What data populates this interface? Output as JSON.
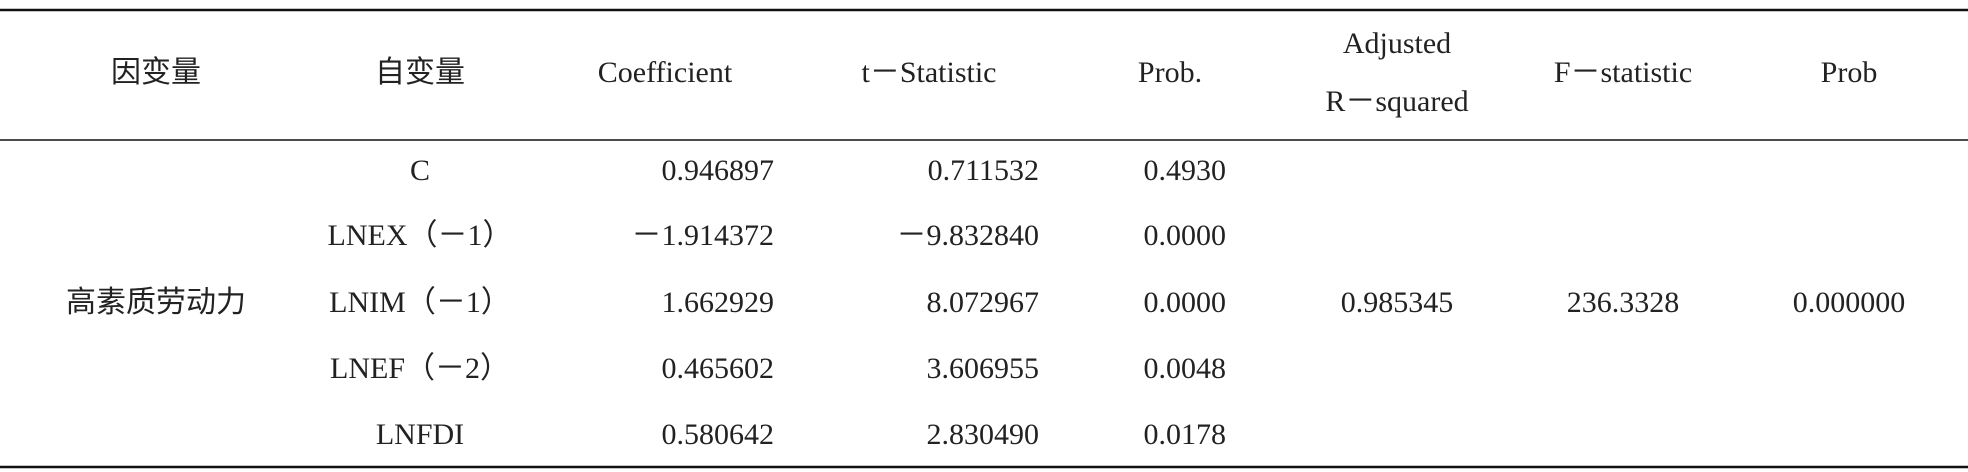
{
  "table": {
    "header": [
      "因变量",
      "自变量",
      "Coefficient",
      "t－Statistic",
      "Prob.",
      [
        "Adjusted",
        "R－squared"
      ],
      "F－statistic",
      "Prob"
    ],
    "dependent": "高素质劳动力",
    "rows": [
      [
        "C",
        "0.946897",
        "0.711532",
        "0.4930"
      ],
      [
        "LNEX（－1）",
        "－1.914372",
        "－9.832840",
        "0.0000"
      ],
      [
        "LNIM（－1）",
        "1.662929",
        "8.072967",
        "0.0000"
      ],
      [
        "LNEF（－2）",
        "0.465602",
        "3.606955",
        "0.0048"
      ],
      [
        "LNFDI",
        "0.580642",
        "2.830490",
        "0.0178"
      ]
    ],
    "adjusted_r_squared": "0.985345",
    "f_statistic": "236.3328",
    "prob": "0.000000"
  }
}
